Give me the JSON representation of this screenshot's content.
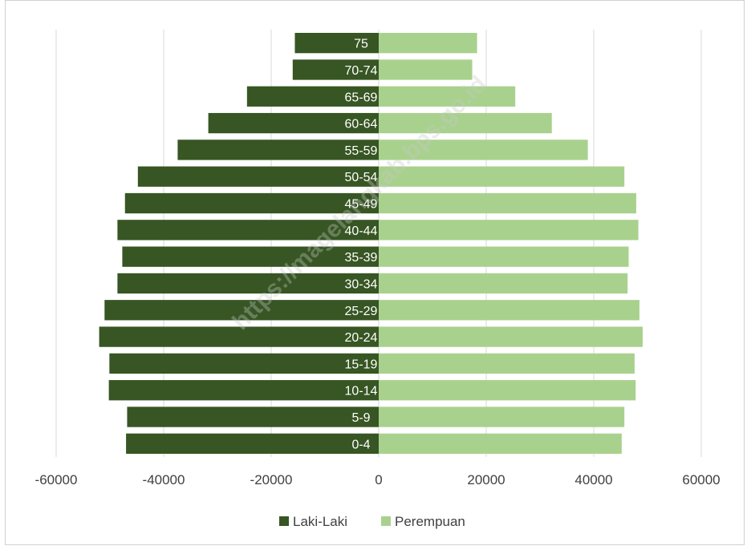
{
  "chart_data": {
    "type": "bar",
    "orientation": "horizontal",
    "categories": [
      "0-4",
      "5-9",
      "10-14",
      "15-19",
      "20-24",
      "25-29",
      "30-34",
      "35-39",
      "40-44",
      "45-49",
      "50-54",
      "55-59",
      "60-64",
      "65-69",
      "70-74",
      "75"
    ],
    "series": [
      {
        "name": "Laki-Laki",
        "color": "#375623",
        "values": [
          -47000,
          -46800,
          -50200,
          -50100,
          -52000,
          -51000,
          -48600,
          -47700,
          -48600,
          -47200,
          -44800,
          -37400,
          -31700,
          -24500,
          -16000,
          -15600
        ]
      },
      {
        "name": "Perempuan",
        "color": "#a9d18e",
        "values": [
          45200,
          45700,
          47800,
          47600,
          49100,
          48500,
          46300,
          46500,
          48300,
          47900,
          45700,
          38900,
          32200,
          25400,
          17400,
          18300
        ]
      }
    ],
    "xlim": [
      -60000,
      60000
    ],
    "xticks": [
      "-60000",
      "-40000",
      "-20000",
      "0",
      "20000",
      "40000",
      "60000"
    ],
    "xtick_values": [
      -60000,
      -40000,
      -20000,
      0,
      20000,
      40000,
      60000
    ],
    "grid": "vertical",
    "legend": "bottom",
    "watermark": "https://magelangkab.bps.go.id"
  }
}
